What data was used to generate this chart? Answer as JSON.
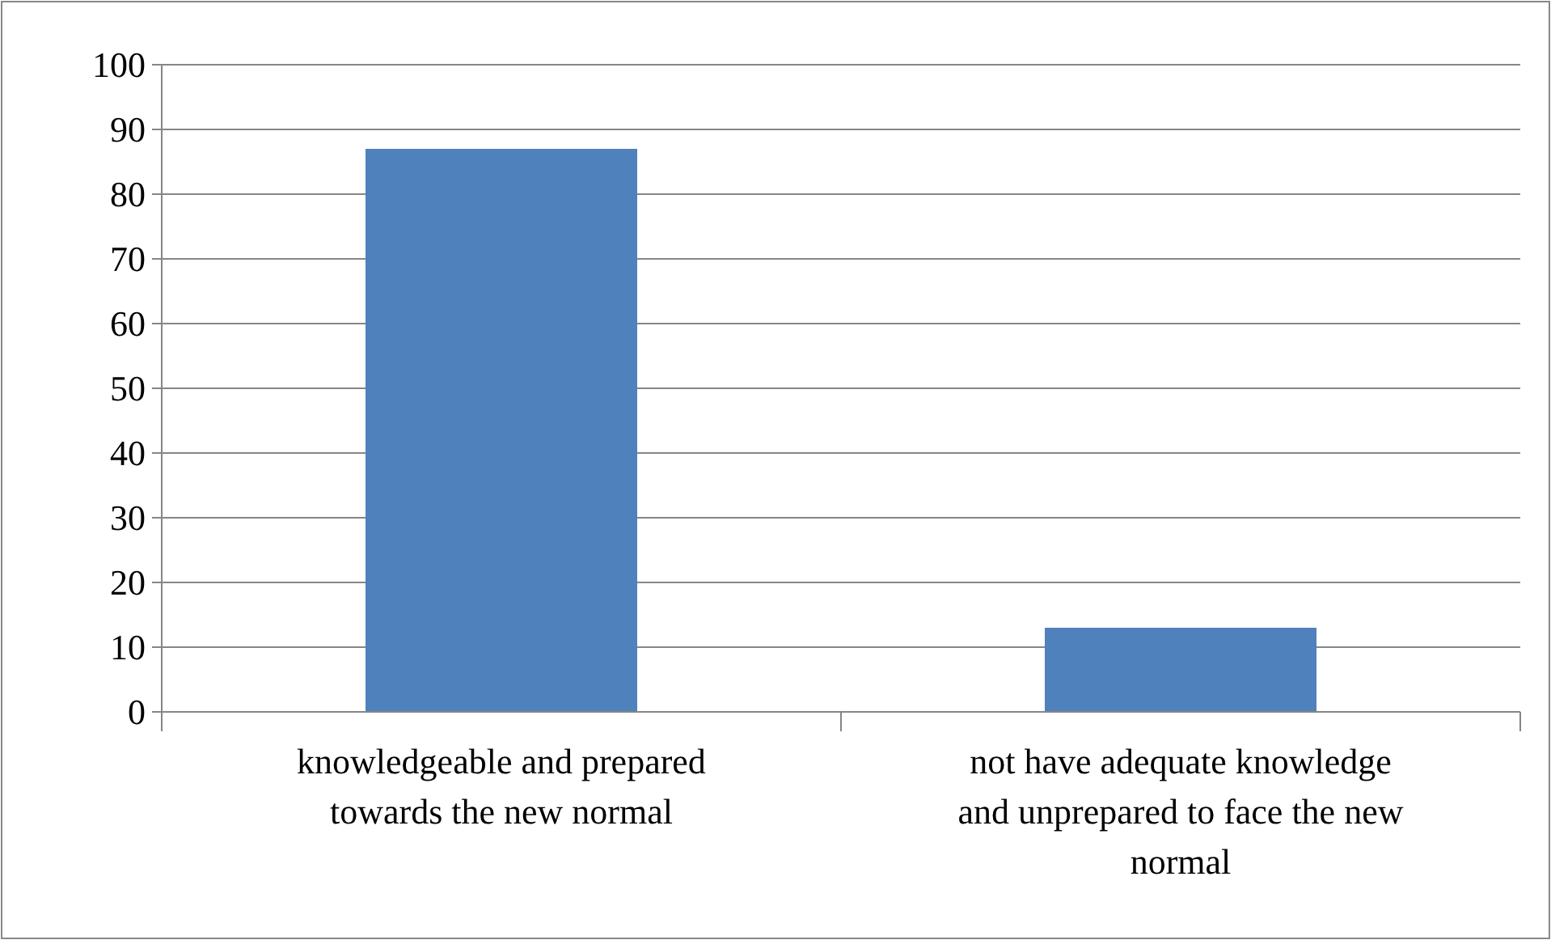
{
  "chart_data": {
    "type": "bar",
    "categories": [
      "knowledgeable and prepared towards the new normal",
      "not have adequate knowledge and unprepared to face the new normal"
    ],
    "values": [
      87,
      13
    ],
    "color": "#4f81bd",
    "ylim": [
      0,
      100
    ],
    "yticks": [
      0,
      10,
      20,
      30,
      40,
      50,
      60,
      70,
      80,
      90,
      100
    ],
    "grid": "y"
  }
}
